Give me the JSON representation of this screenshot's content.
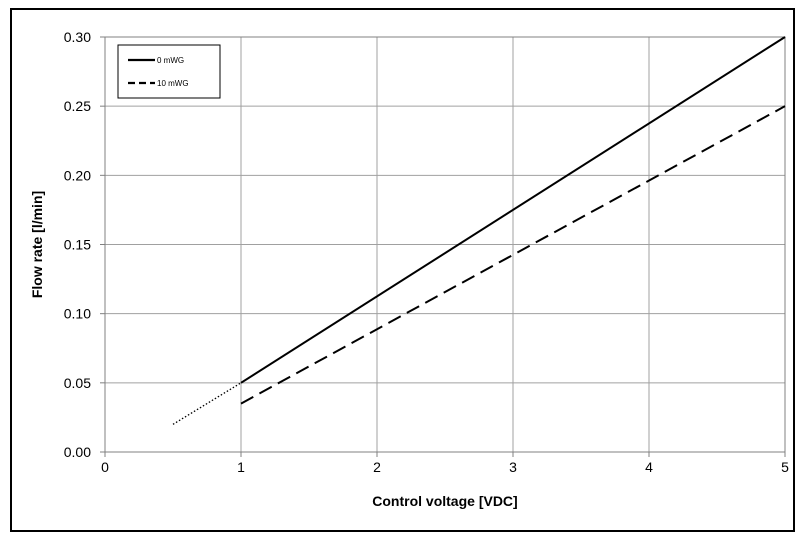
{
  "chart_data": {
    "type": "line",
    "xlabel": "Control voltage [VDC]",
    "ylabel": "Flow rate [l/min]",
    "xlim": [
      0,
      5
    ],
    "ylim": [
      0,
      0.3
    ],
    "xticks": [
      "0",
      "1",
      "2",
      "3",
      "4",
      "5"
    ],
    "yticks": [
      "0.00",
      "0.05",
      "0.10",
      "0.15",
      "0.20",
      "0.25",
      "0.30"
    ],
    "grid": true,
    "legend_position": "top-left",
    "series": [
      {
        "name": "0 mWG",
        "style": "solid",
        "x": [
          1,
          5
        ],
        "y": [
          0.05,
          0.3
        ],
        "color": "#000000"
      },
      {
        "name": "10 mWG",
        "style": "dashed",
        "x": [
          1,
          5
        ],
        "y": [
          0.035,
          0.25
        ],
        "color": "#000000"
      },
      {
        "name": "",
        "style": "dotted",
        "x": [
          0.5,
          1
        ],
        "y": [
          0.02,
          0.05
        ],
        "color": "#000000"
      }
    ]
  }
}
